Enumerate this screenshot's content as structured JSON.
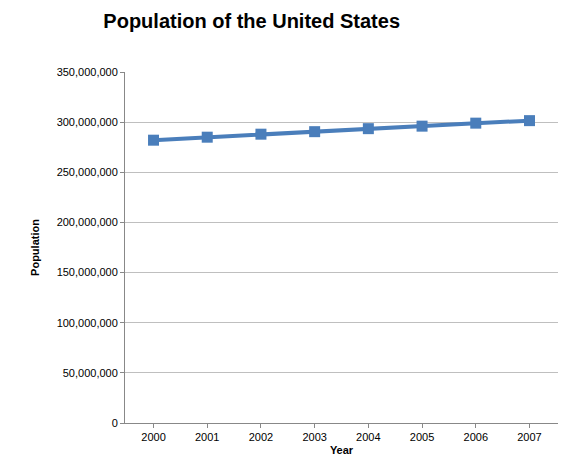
{
  "chart_data": {
    "type": "line",
    "title": "Population of the United States",
    "x_label": "Year",
    "y_label": "Population",
    "categories": [
      "2000",
      "2001",
      "2002",
      "2003",
      "2004",
      "2005",
      "2006",
      "2007"
    ],
    "values": [
      282000000,
      285000000,
      288000000,
      290500000,
      293500000,
      296000000,
      299000000,
      301500000
    ],
    "color": "#4a7ebb",
    "marker": "square",
    "line_style": "solid",
    "ylim": [
      0,
      350000000
    ],
    "yticks": [
      {
        "value": 0,
        "label": "0"
      },
      {
        "value": 50000000,
        "label": "50,000,000"
      },
      {
        "value": 100000000,
        "label": "100,000,000"
      },
      {
        "value": 150000000,
        "label": "150,000,000"
      },
      {
        "value": 200000000,
        "label": "200,000,000"
      },
      {
        "value": 250000000,
        "label": "250,000,000"
      },
      {
        "value": 300000000,
        "label": "300,000,000"
      },
      {
        "value": 350000000,
        "label": "350,000,000"
      }
    ],
    "grid": true
  }
}
